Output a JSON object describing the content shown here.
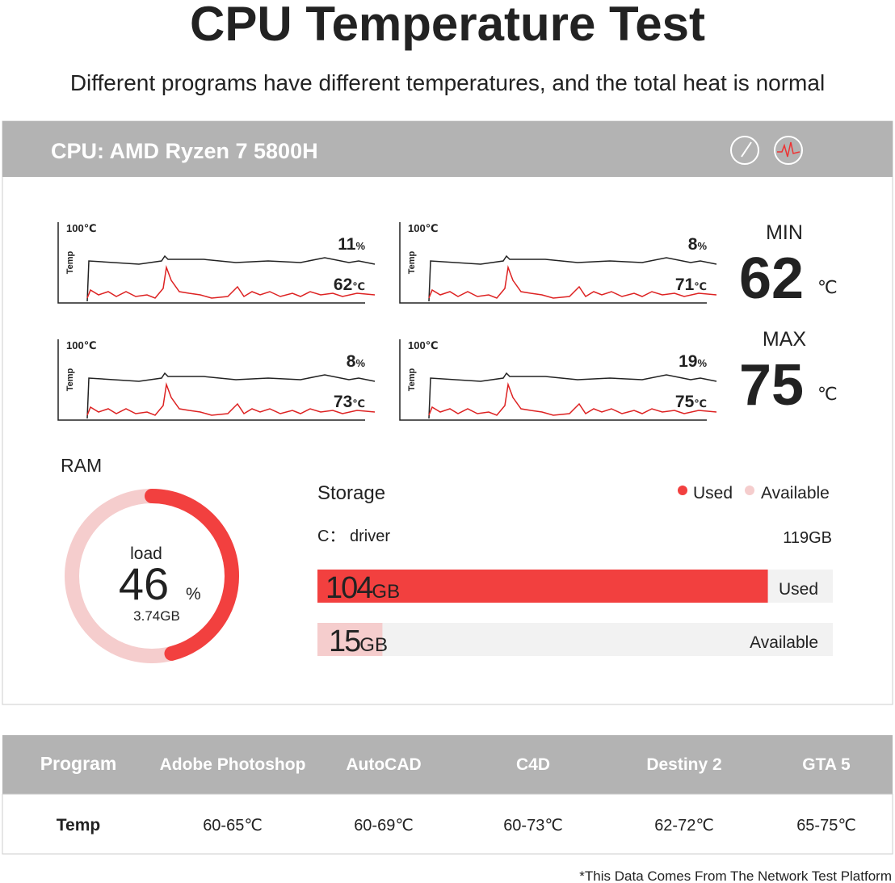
{
  "header": {
    "title": "CPU Temperature Test",
    "subtitle": "Different programs have different temperatures, and the total heat is normal"
  },
  "panel": {
    "cpu": "CPU: AMD Ryzen 7 5800H",
    "graphs": [
      {
        "max_label": "100℃",
        "axis_label": "Temp",
        "usage": 11,
        "usage_unit": "%",
        "temp": 62,
        "temp_unit": "℃"
      },
      {
        "max_label": "100℃",
        "axis_label": "Temp",
        "usage": 8,
        "usage_unit": "%",
        "temp": 71,
        "temp_unit": "℃"
      },
      {
        "max_label": "100℃",
        "axis_label": "Temp",
        "usage": 8,
        "usage_unit": "%",
        "temp": 73,
        "temp_unit": "℃"
      },
      {
        "max_label": "100℃",
        "axis_label": "Temp",
        "usage": 19,
        "usage_unit": "%",
        "temp": 75,
        "temp_unit": "℃"
      }
    ],
    "min": {
      "label": "MIN",
      "value": 62,
      "unit": "℃"
    },
    "max": {
      "label": "MAX",
      "value": 75,
      "unit": "℃"
    },
    "ram": {
      "label": "RAM",
      "caption": "load",
      "value": 46,
      "unit": "%",
      "amount": "3.74GB"
    },
    "storage": {
      "title": "Storage",
      "legend": [
        "Used",
        "Available"
      ],
      "drive": "C： driver",
      "total": 119,
      "total_unit": "GB",
      "bars": [
        {
          "value": 104,
          "unit": "GB",
          "label": "Used"
        },
        {
          "value": 15,
          "unit": "GB",
          "label": "Available"
        }
      ]
    }
  },
  "table": {
    "header": [
      "Program",
      "Adobe Photoshop",
      "AutoCAD",
      "C4D",
      "Destiny 2",
      "GTA 5"
    ],
    "rows": [
      [
        "Temp",
        "60-65℃",
        "60-69℃",
        "60-73℃",
        "62-72℃",
        "65-75℃"
      ]
    ]
  },
  "footnote": "*This Data Comes From The Network Test Platform"
}
